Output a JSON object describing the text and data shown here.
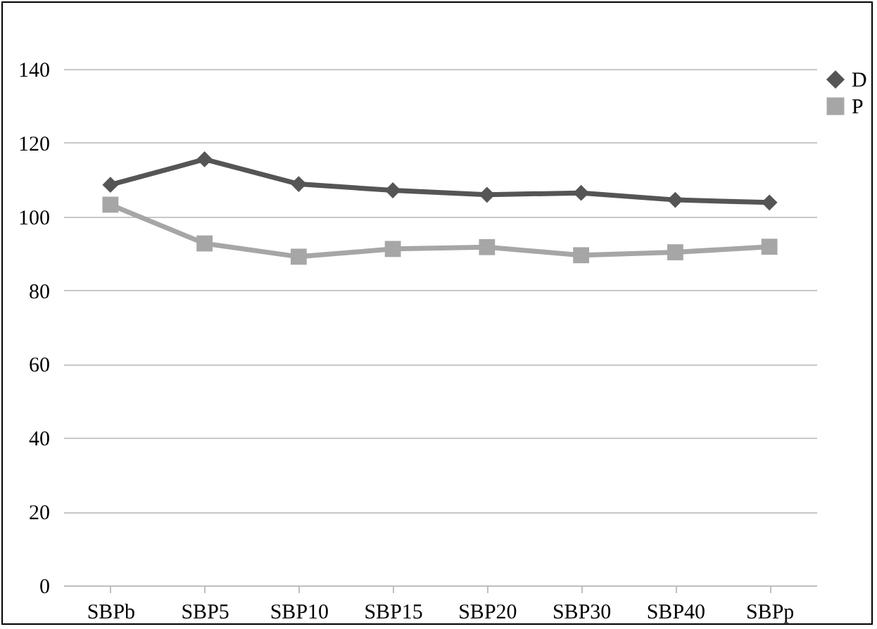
{
  "chart_data": {
    "type": "line",
    "categories": [
      "SBPb",
      "SBP5",
      "SBP10",
      "SBP15",
      "SBP20",
      "SBP30",
      "SBP40",
      "SBPp"
    ],
    "series": [
      {
        "name": "D",
        "color": "#555555",
        "marker": "diamond",
        "values": [
          108.6,
          115.5,
          108.8,
          107.1,
          105.9,
          106.4,
          104.5,
          103.8
        ]
      },
      {
        "name": "P",
        "color": "#a6a6a6",
        "marker": "square",
        "values": [
          103.2,
          92.7,
          89.1,
          91.2,
          91.7,
          89.5,
          90.3,
          91.8
        ]
      }
    ],
    "ylim": [
      0,
      140
    ],
    "yticks": [
      0,
      20,
      40,
      60,
      80,
      100,
      120,
      140
    ],
    "grid": "y",
    "legend": "right",
    "line_style": "solid"
  }
}
